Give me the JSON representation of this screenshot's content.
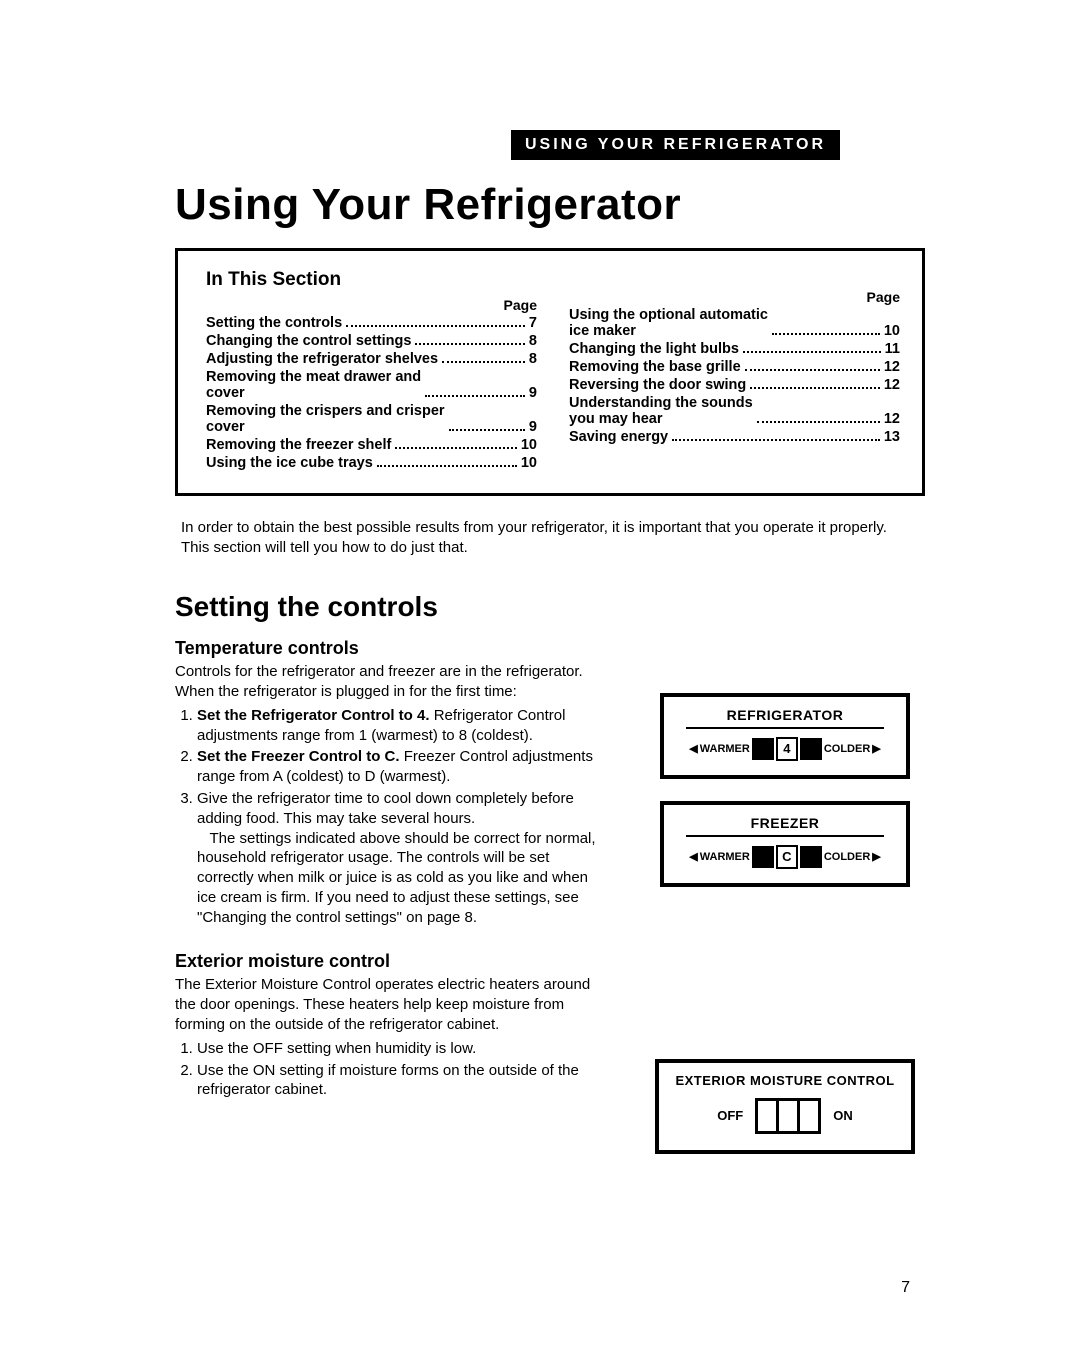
{
  "header_tab": "USING YOUR REFRIGERATOR",
  "main_title": "Using Your Refrigerator",
  "toc": {
    "title": "In This Section",
    "page_word": "Page",
    "left": [
      {
        "label": "Setting the controls",
        "page": "7"
      },
      {
        "label": "Changing the control settings",
        "page": "8"
      },
      {
        "label": "Adjusting the refrigerator shelves",
        "page": "8"
      },
      {
        "label": "Removing the meat drawer and\ncover",
        "page": "9"
      },
      {
        "label": "Removing the crispers and crisper\ncover",
        "page": "9"
      },
      {
        "label": "Removing the freezer shelf",
        "page": "10"
      },
      {
        "label": "Using the ice cube trays",
        "page": "10"
      }
    ],
    "right": [
      {
        "label": "Using the optional automatic\nice maker",
        "page": "10"
      },
      {
        "label": "Changing the light bulbs",
        "page": "11"
      },
      {
        "label": "Removing the base grille",
        "page": "12"
      },
      {
        "label": "Reversing the door swing",
        "page": "12"
      },
      {
        "label": "Understanding the sounds\nyou may hear",
        "page": "12"
      },
      {
        "label": "Saving energy",
        "page": "13"
      }
    ]
  },
  "intro": "In order to obtain the best possible results from your refrigerator, it is important that you operate it properly. This section will tell you how to do just that.",
  "section_heading": "Setting the controls",
  "temp": {
    "heading": "Temperature controls",
    "lead": "Controls for the refrigerator and freezer are in the refrigerator. When the refrigerator is plugged in for the first time:",
    "steps": [
      {
        "bold": "Set the Refrigerator Control to 4.",
        "rest": " Refrigerator Control adjustments range from 1 (warmest) to 8 (coldest)."
      },
      {
        "bold": "Set the Freezer Control to C.",
        "rest": " Freezer Control adjustments range from A (coldest) to D (warmest)."
      },
      {
        "bold": "",
        "rest": "Give the refrigerator time to cool down completely before adding food. This may take several hours.\n   The settings indicated above should be correct for normal, household refrigerator usage. The controls will be set correctly when milk or juice is as cold as you like and when ice cream is firm. If you need to adjust these settings, see \"Changing the control settings\" on page 8."
      }
    ]
  },
  "moist": {
    "heading": "Exterior moisture control",
    "para": "The Exterior Moisture Control operates electric heaters around the door openings. These heaters help keep moisture from forming on the outside of the refrigerator cabinet.",
    "steps": [
      "Use the OFF setting when humidity is low.",
      "Use the ON setting if moisture forms on the outside of the refrigerator cabinet."
    ]
  },
  "panels": {
    "refrigerator": {
      "title": "REFRIGERATOR",
      "warmer": "WARMER",
      "value": "4",
      "colder": "COLDER"
    },
    "freezer": {
      "title": "FREEZER",
      "warmer": "WARMER",
      "value": "C",
      "colder": "COLDER"
    },
    "moisture": {
      "title": "EXTERIOR MOISTURE CONTROL",
      "off": "OFF",
      "on": "ON"
    }
  },
  "footer_page": "7"
}
